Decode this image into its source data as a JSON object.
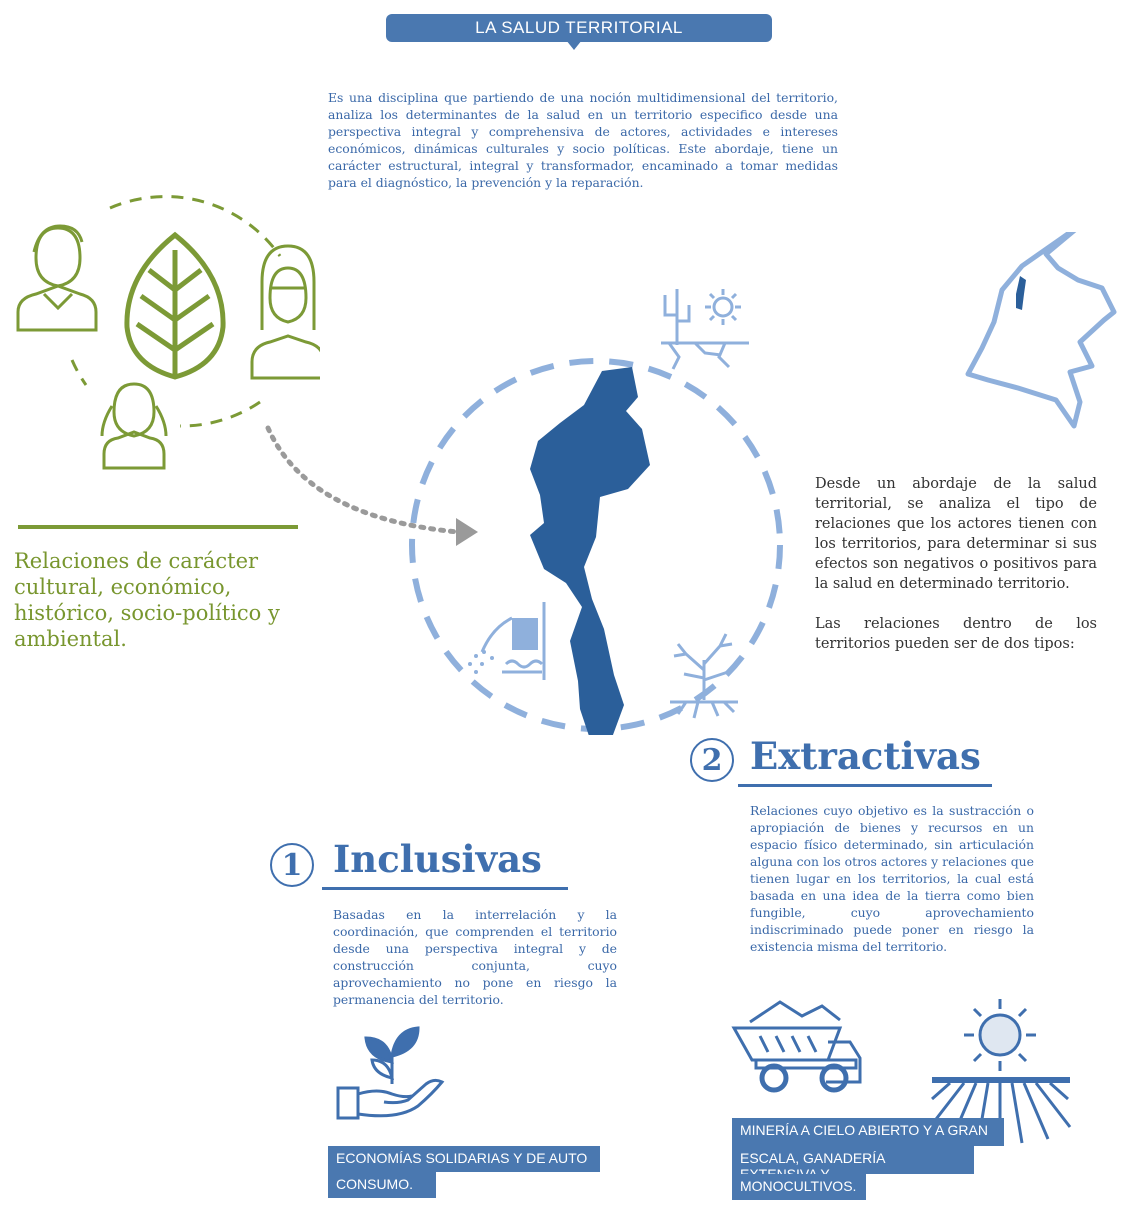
{
  "header": {
    "title": "LA SALUD TERRITORIAL"
  },
  "intro": {
    "text": "Es una disciplina que partiendo de una noción multidimensional del territorio, analiza los determinantes de la salud en un territorio especifico desde una perspectiva integral y comprehensiva de actores, actividades e intereses económicos, dinámicas culturales y socio políticas. Este abordaje, tiene un carácter estructural, integral y transformador, encaminado a tomar medidas para el diagnóstico, la prevención y la reparación."
  },
  "left": {
    "relations_text": "Relaciones de carácter cultural, económico, histórico, socio-político y ambiental.",
    "icons": [
      "man-icon",
      "leaf-icon",
      "woman-icon",
      "girl-icon"
    ]
  },
  "right": {
    "paragraph_1": "Desde un abordaje de la salud territorial, se analiza el tipo de relaciones que los actores tienen con los territorios, para determinar si sus efectos son negativos o positivos para la salud en determinado territorio.",
    "paragraph_2": "Las relaciones dentro de los territorios pueden ser de dos tipos:"
  },
  "inclusivas": {
    "number": "1",
    "title": "Inclusivas",
    "description": "Basadas en la interrelación y la coordinación, que comprenden el territorio desde una perspectiva integral y de construcción conjunta, cuyo aprovechamiento no pone en riesgo la permanencia del territorio.",
    "label_lines": [
      "ECONOMÍAS SOLIDARIAS Y DE AUTO",
      "CONSUMO."
    ]
  },
  "extractivas": {
    "number": "2",
    "title": "Extractivas",
    "description": "Relaciones cuyo objetivo es la sustracción o apropiación de bienes y recursos en un espacio físico determinado, sin articulación alguna con los otros actores y relaciones que tienen lugar en los territorios, la cual está basada en una idea de la tierra como bien fungible, cuyo aprovechamiento indiscriminado puede poner en riesgo la existencia misma del territorio.",
    "label_lines": [
      "MINERÍA A CIELO ABIERTO Y A GRAN",
      "ESCALA, GANADERÍA EXTENSIVA Y",
      "MONOCULTIVOS."
    ]
  },
  "colors": {
    "blue": "#3f6fae",
    "dark_blue": "#2b5f9a",
    "light_blue": "#8fb0dc",
    "green": "#7c9a36"
  }
}
